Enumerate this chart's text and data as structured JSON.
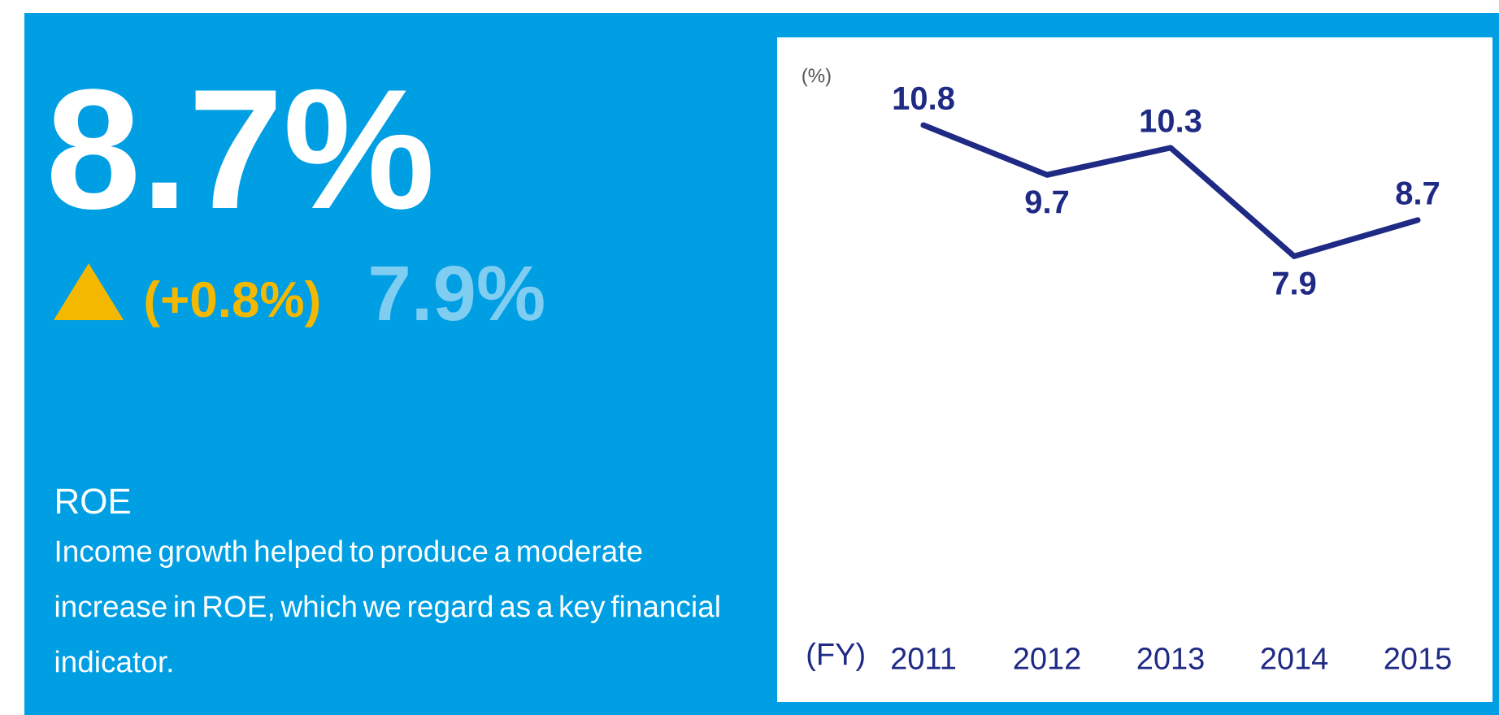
{
  "chart_data": [
    {
      "type": "other",
      "title": "ROE",
      "subtitle": "Income growth helped to produce a moderate increase in ROE, which we regard as a key financial indicator.",
      "annotations": [
        "8.7%",
        "(+0.8%)",
        "7.9%"
      ]
    },
    {
      "type": "line",
      "categories": [
        "2011",
        "2012",
        "2013",
        "2014",
        "2015"
      ],
      "values": [
        10.8,
        9.7,
        10.3,
        7.9,
        8.7
      ],
      "color": "#1f2a85",
      "xlabel": "(FY)",
      "ylabel": "(%)",
      "data_labels": true,
      "marker": "none",
      "line_style": "solid"
    }
  ]
}
